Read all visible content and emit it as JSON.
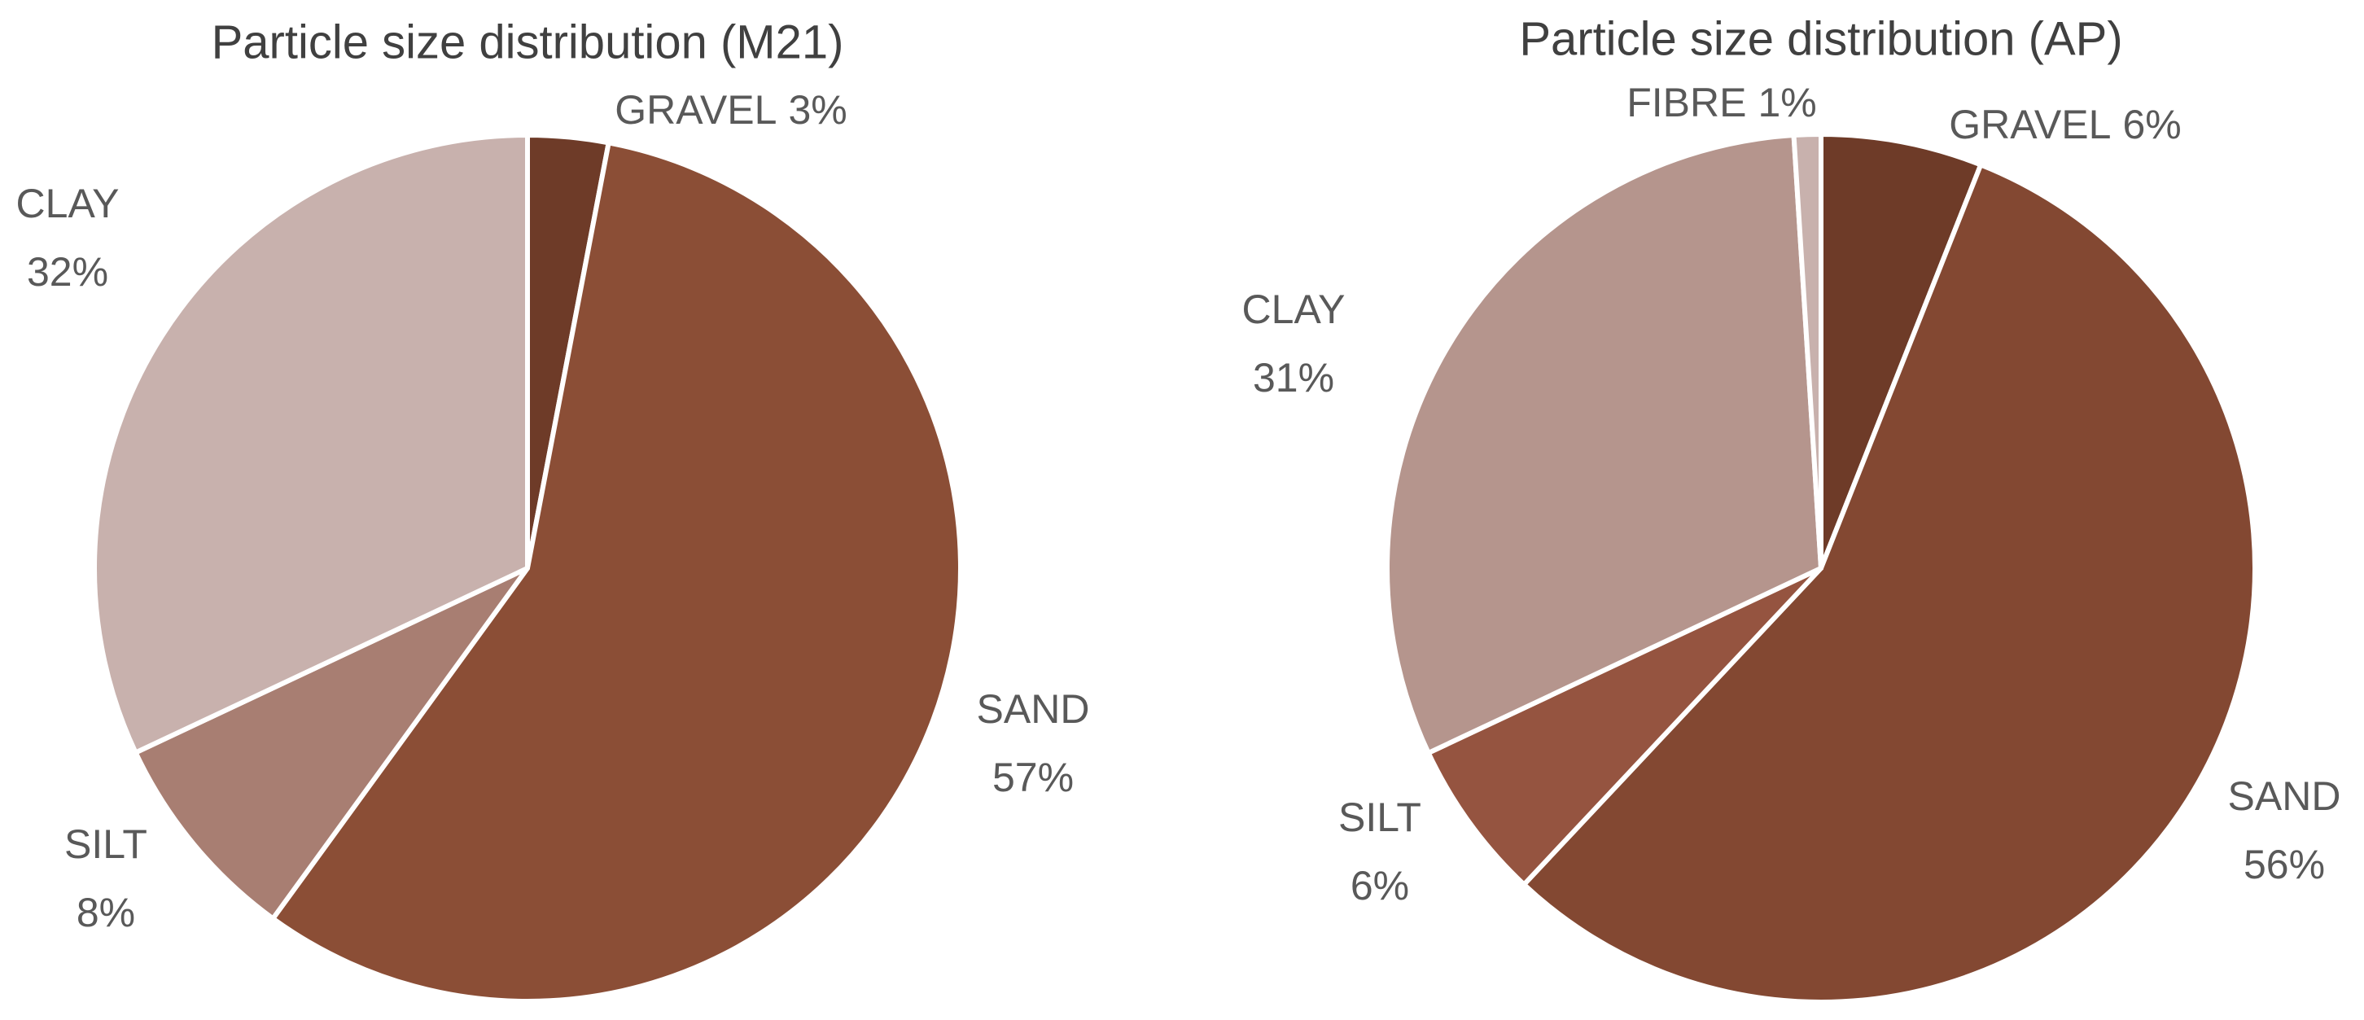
{
  "chart_data": [
    {
      "type": "pie",
      "title": "Particle size distribution (M21)",
      "categories": [
        "GRAVEL",
        "SAND",
        "SILT",
        "CLAY"
      ],
      "values": [
        3,
        57,
        8,
        32
      ],
      "value_labels": [
        "3%",
        "57%",
        "8%",
        "32%"
      ],
      "colors": [
        "#6e3b28",
        "#8b4e36",
        "#a87e72",
        "#c8b1ad"
      ]
    },
    {
      "type": "pie",
      "title": "Particle size distribution (AP)",
      "categories": [
        "GRAVEL",
        "SAND",
        "SILT",
        "CLAY",
        "FIBRE"
      ],
      "values": [
        6,
        56,
        6,
        31,
        1
      ],
      "value_labels": [
        "6%",
        "56%",
        "6%",
        "31%",
        "1%"
      ],
      "colors": [
        "#6e3b28",
        "#834832",
        "#955440",
        "#b5958d",
        "#c8b1ad"
      ]
    }
  ]
}
